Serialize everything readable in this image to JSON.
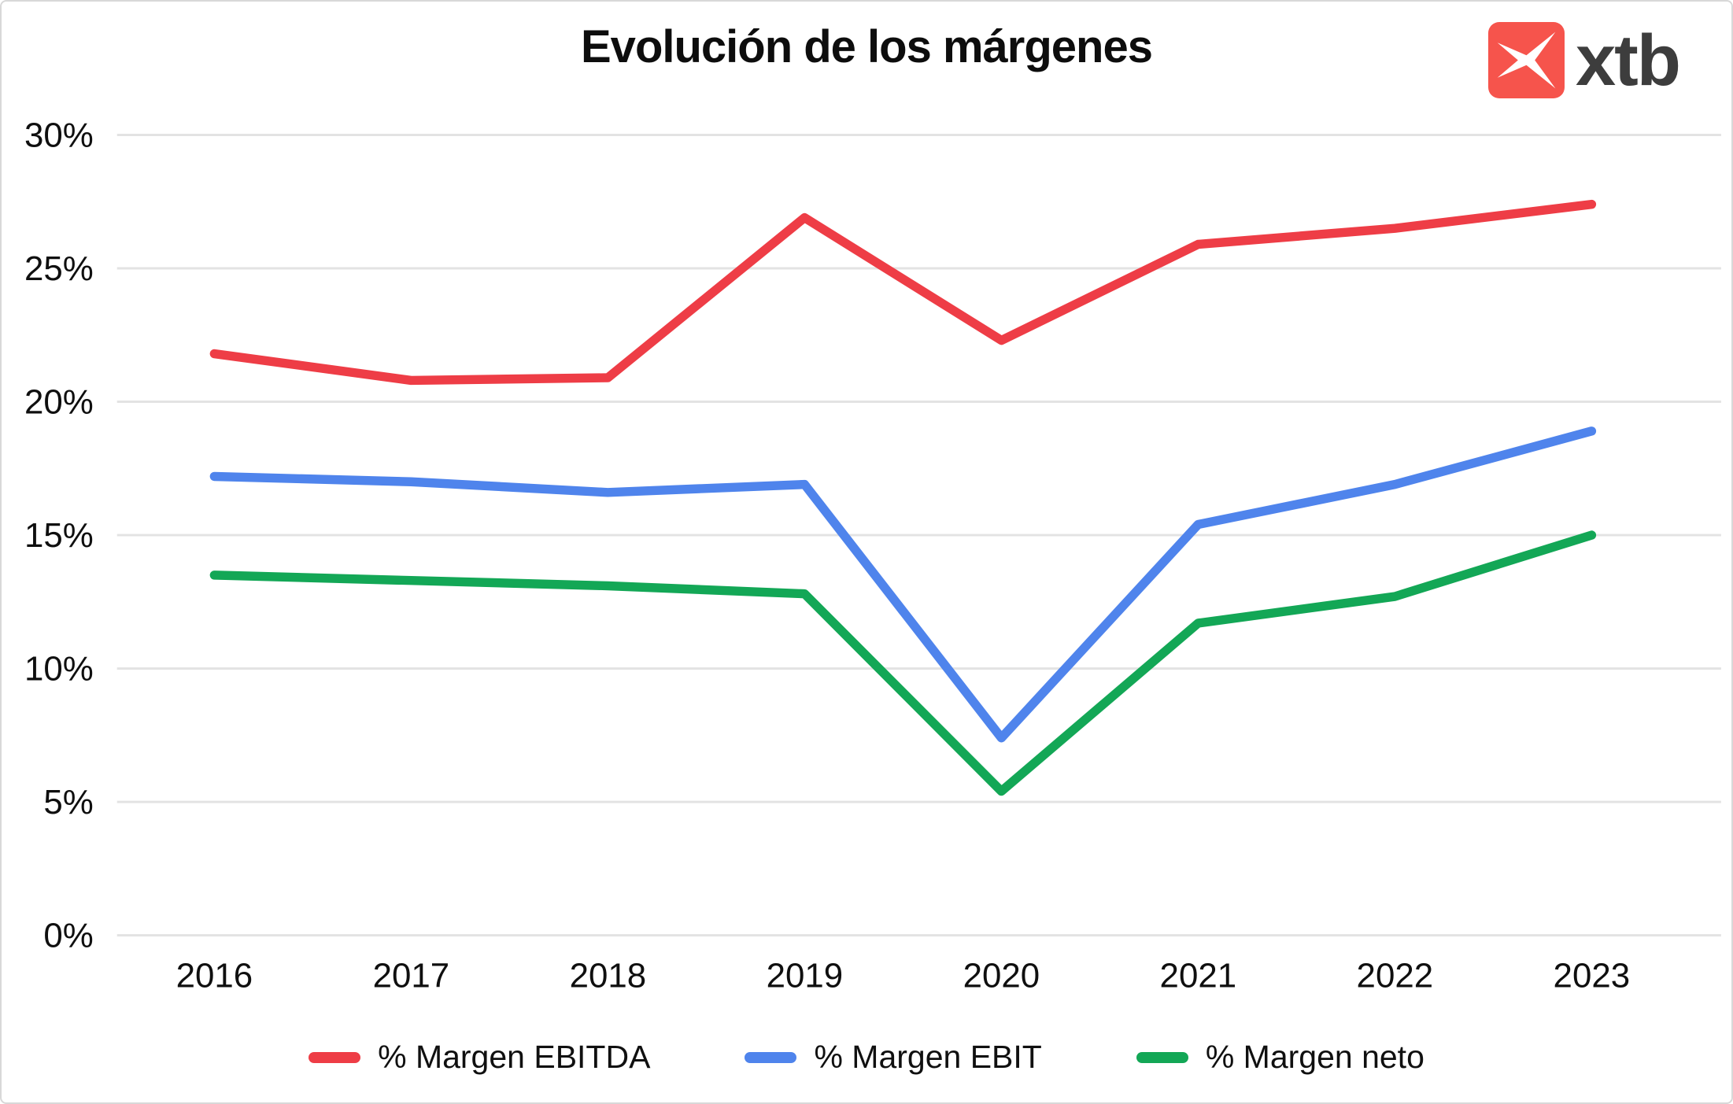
{
  "title": "Evolución de los márgenes",
  "logo": {
    "brand": "xtb"
  },
  "chart_data": {
    "type": "line",
    "title": "Evolución de los márgenes",
    "categories": [
      "2016",
      "2017",
      "2018",
      "2019",
      "2020",
      "2021",
      "2022",
      "2023"
    ],
    "series": [
      {
        "name": "% Margen EBITDA",
        "color": "#ee3d46",
        "values": [
          21.8,
          20.8,
          20.9,
          26.9,
          22.3,
          25.9,
          26.5,
          27.4
        ]
      },
      {
        "name": "% Margen EBIT",
        "color": "#4f84ec",
        "values": [
          17.2,
          17.0,
          16.6,
          16.9,
          7.4,
          15.4,
          16.9,
          18.9
        ]
      },
      {
        "name": "% Margen neto",
        "color": "#13a756",
        "values": [
          13.5,
          13.3,
          13.1,
          12.8,
          5.4,
          11.7,
          12.7,
          15.0
        ]
      }
    ],
    "xlabel": "",
    "ylabel": "",
    "ylim": [
      0,
      30
    ],
    "y_tick_step": 5,
    "y_tick_labels": [
      "0%",
      "5%",
      "10%",
      "15%",
      "20%",
      "25%",
      "30%"
    ],
    "grid": "horizontal-only",
    "legend_position": "bottom-center"
  },
  "colors": {
    "grid": "#e3e3e3",
    "axis_text": "#0f0f0f",
    "background": "#ffffff",
    "border": "#d8d8d8",
    "logo_red": "#f6544c",
    "logo_text": "#3d3d3d"
  }
}
